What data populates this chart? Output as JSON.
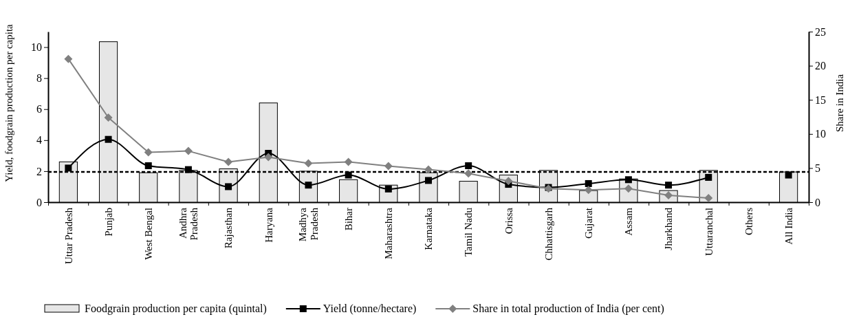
{
  "chart_data": {
    "type": "bar",
    "ylabel": "Yield, foodgrain production per capita",
    "y2label": "Share in India",
    "categories": [
      "Uttar Pradesh",
      "Punjab",
      "West Bengal",
      "Andhra Pradesh",
      "Rajasthan",
      "Haryana",
      "Madhya Pradesh",
      "Bihar",
      "Maharashtra",
      "Karnataka",
      "Tamil Nadu",
      "Orissa",
      "Chhattisgarh",
      "Gujarat",
      "Assam",
      "Jharkhand",
      "Uttaranchal",
      "Others",
      "All India"
    ],
    "series": [
      {
        "name": "Foodgrain production per capita (quintal)",
        "color": "#e6e6e6",
        "values": [
          2.6,
          10.35,
          1.9,
          2.05,
          2.15,
          6.4,
          2.0,
          1.45,
          1.1,
          1.9,
          1.35,
          1.75,
          2.05,
          0.75,
          1.5,
          0.75,
          2.05,
          null,
          1.95
        ]
      },
      {
        "name": "Yield (tonne/hectare)",
        "type": "line",
        "color": "#000000",
        "marker": "square",
        "values": [
          2.2,
          4.05,
          2.35,
          2.1,
          1.0,
          3.15,
          1.1,
          1.75,
          0.85,
          1.4,
          2.35,
          1.15,
          0.95,
          1.2,
          1.45,
          1.1,
          1.6,
          null,
          1.75
        ]
      },
      {
        "name": "Share in total production of India (per cent)",
        "type": "line",
        "axis": "y2",
        "color": "#808080",
        "marker": "diamond",
        "values": [
          21,
          12.4,
          7.3,
          7.5,
          5.9,
          6.6,
          5.7,
          5.9,
          5.3,
          4.8,
          4.2,
          3.1,
          2.0,
          1.8,
          2.0,
          1.0,
          0.6,
          null,
          null
        ]
      }
    ],
    "ylim": [
      0,
      11
    ],
    "yticks": [
      0,
      2,
      4,
      6,
      8,
      10
    ],
    "y2lim": [
      0,
      25
    ],
    "y2ticks": [
      0,
      5,
      10,
      15,
      20,
      25
    ],
    "ref_lines": [
      {
        "axis": "y",
        "value": 1.95,
        "color": "#000000",
        "line_style": "dashed"
      }
    ],
    "grid": false,
    "legend": "bottom"
  }
}
